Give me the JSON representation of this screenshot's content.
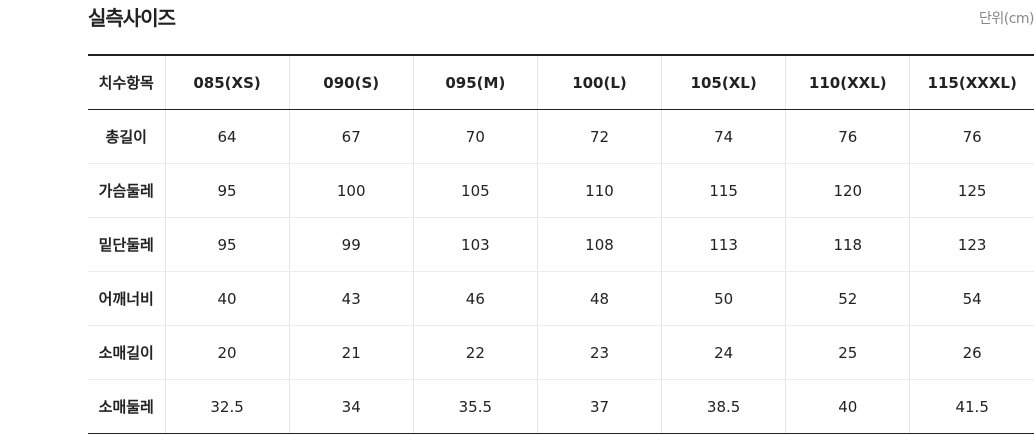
{
  "header": {
    "title": "실측사이즈",
    "unit": "단위(cm)"
  },
  "table": {
    "columns": [
      "치수항목",
      "085(XS)",
      "090(S)",
      "095(M)",
      "100(L)",
      "105(XL)",
      "110(XXL)",
      "115(XXXL)"
    ],
    "rows": [
      [
        "총길이",
        64,
        67,
        70,
        72,
        74,
        76,
        76
      ],
      [
        "가슴둘레",
        95,
        100,
        105,
        110,
        115,
        120,
        125
      ],
      [
        "밑단둘레",
        95,
        99,
        103,
        108,
        113,
        118,
        123
      ],
      [
        "어깨너비",
        40,
        43,
        46,
        48,
        50,
        52,
        54
      ],
      [
        "소매길이",
        20,
        21,
        22,
        23,
        24,
        25,
        26
      ],
      [
        "소매둘레",
        32.5,
        34,
        35.5,
        37,
        38.5,
        40,
        41.5
      ]
    ]
  }
}
